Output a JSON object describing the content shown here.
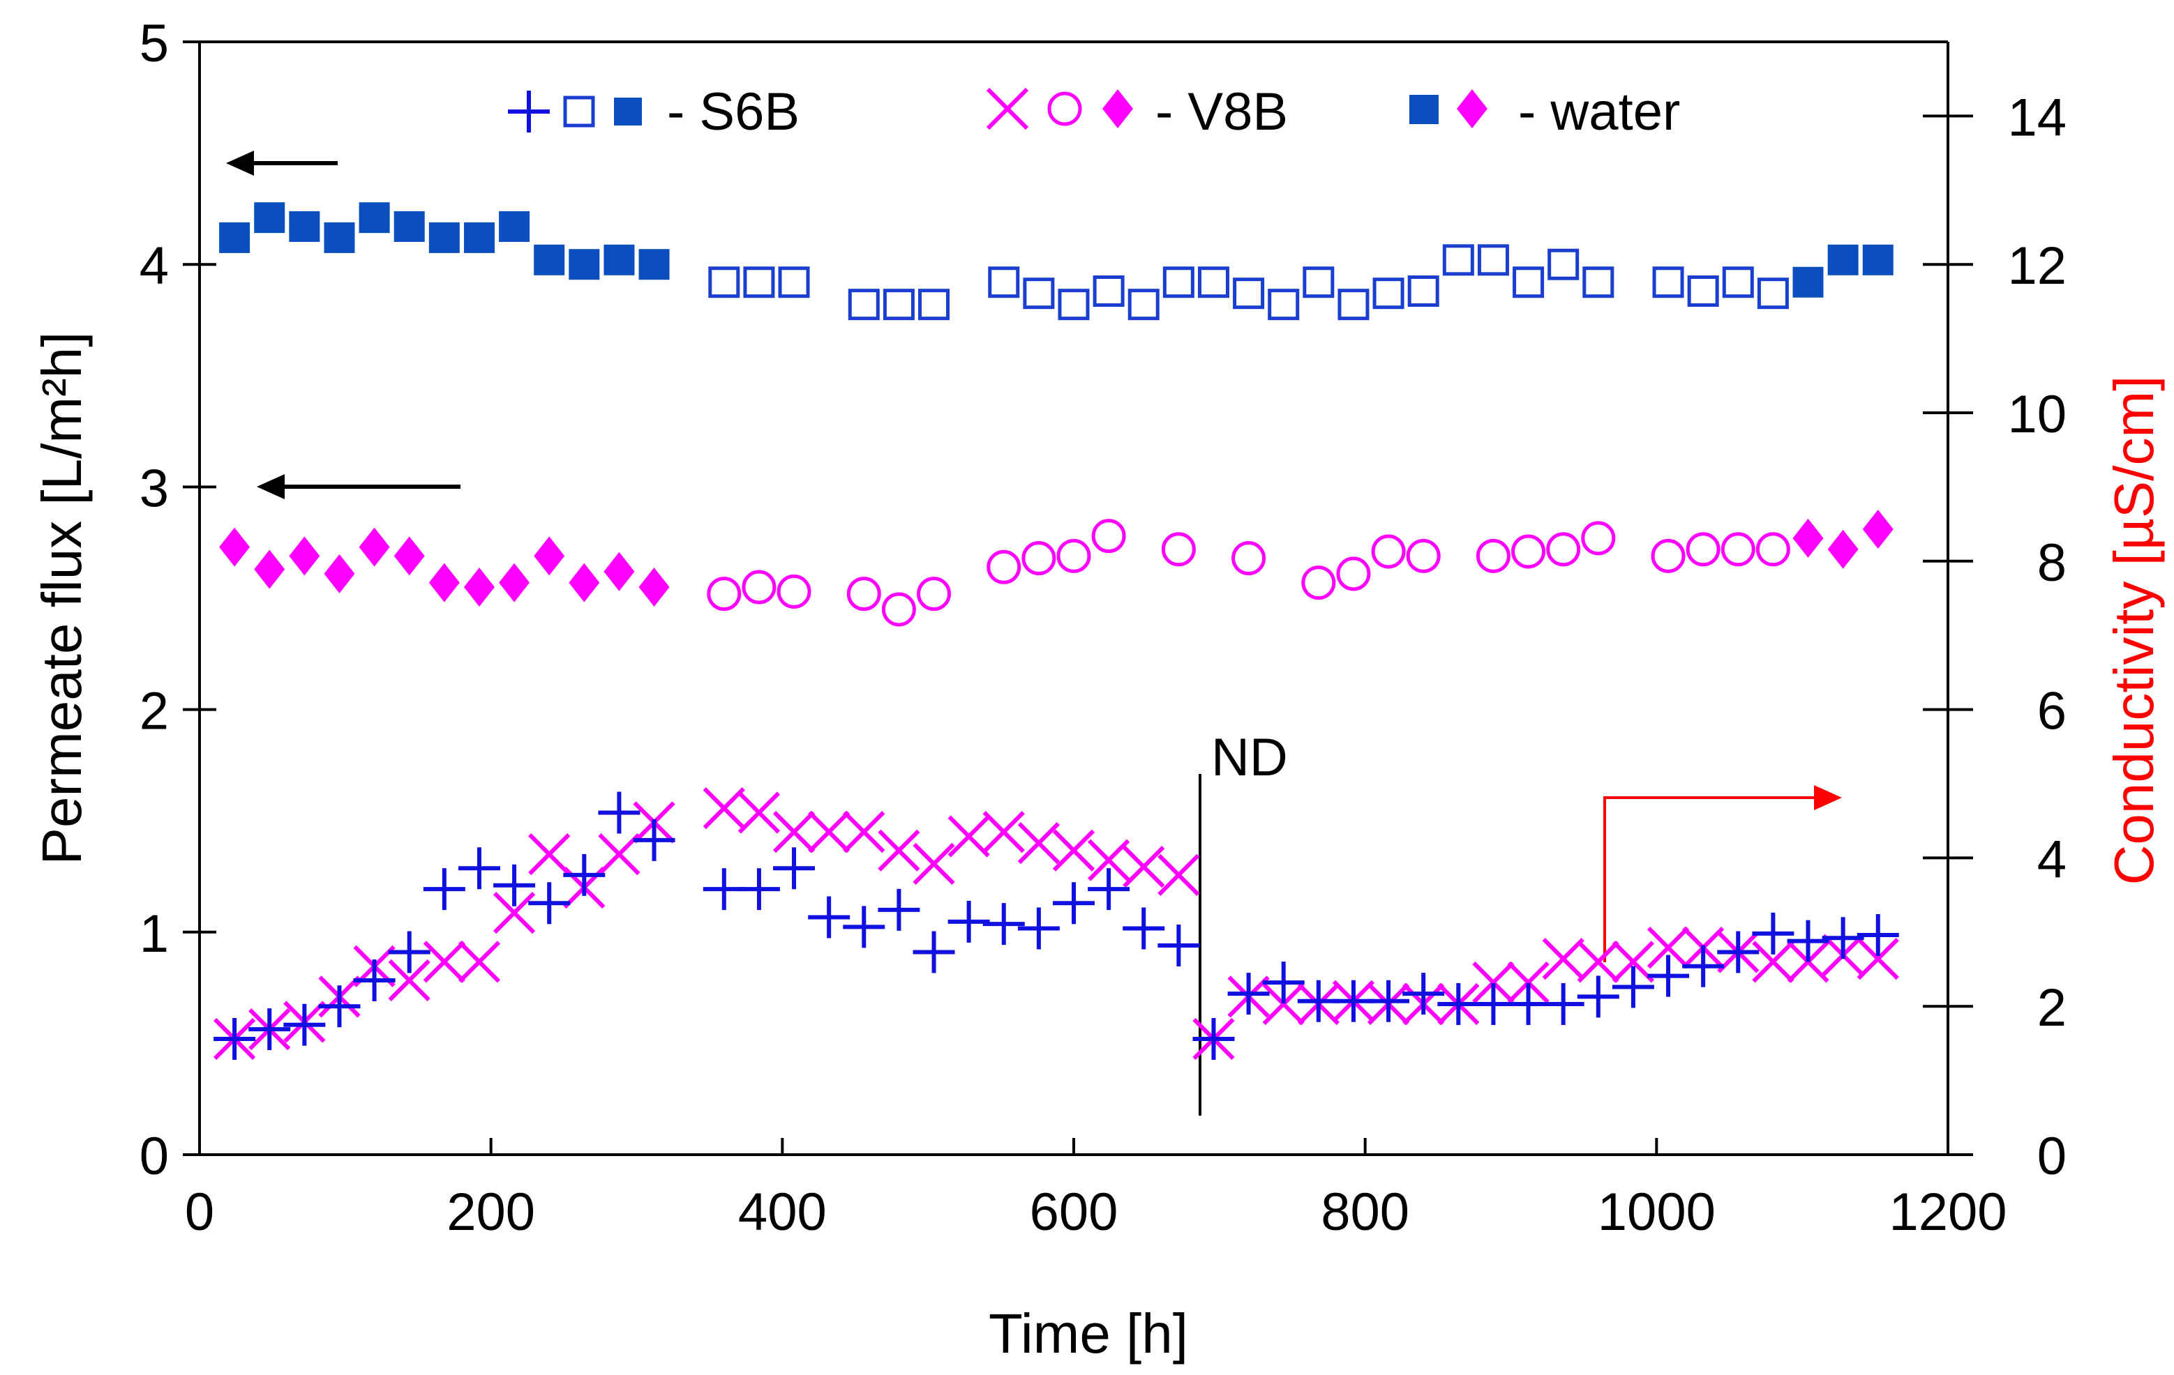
{
  "chart_data": {
    "type": "scatter",
    "xlabel": "Time [h]",
    "ylabel": "Permeate flux [L/m²h]",
    "y2label": "Conductivity [µS/cm]",
    "xlim": [
      0,
      1200
    ],
    "ylim": [
      0,
      5
    ],
    "y2lim": [
      0,
      15
    ],
    "xticks": [
      "0",
      "200",
      "400",
      "600",
      "800",
      "1000",
      "1200"
    ],
    "yticks": [
      "0",
      "1",
      "2",
      "3",
      "4",
      "5"
    ],
    "y2ticks": [
      "0",
      "2",
      "4",
      "6",
      "8",
      "10",
      "12",
      "14"
    ],
    "grid": false,
    "legend": {
      "placement": "top",
      "entries": [
        "- S6B",
        "- V8B",
        "- water"
      ]
    },
    "annotations": {
      "nd": "ND",
      "nd_time": 687
    },
    "colors": {
      "s6b": "#1010e0",
      "v8b": "#ff00ff",
      "water_square": "#0a4ebf",
      "axis_right_label": "#ff0000",
      "arrow_right": "#ff0000",
      "arrow_left": "#000000"
    },
    "series": [
      {
        "group": "S6B",
        "kind": "flux",
        "marker": "filled-square",
        "color": "#0a4ebf",
        "axis": "left",
        "x": [
          24,
          48,
          72,
          96,
          120,
          144,
          168,
          192,
          216,
          240,
          264,
          288,
          312
        ],
        "y": [
          4.12,
          4.21,
          4.17,
          4.12,
          4.21,
          4.17,
          4.12,
          4.12,
          4.17,
          4.02,
          4.0,
          4.02,
          4.0
        ]
      },
      {
        "group": "S6B",
        "kind": "flux",
        "marker": "open-square",
        "color": "#1a3fd0",
        "axis": "left",
        "x": [
          360,
          384,
          408,
          456,
          480,
          504,
          552,
          576,
          600,
          624,
          648,
          672,
          696,
          720,
          744,
          768,
          792,
          816,
          840,
          864,
          888,
          912,
          936,
          960,
          1008,
          1032,
          1056,
          1080
        ],
        "y": [
          3.92,
          3.92,
          3.92,
          3.82,
          3.82,
          3.82,
          3.92,
          3.87,
          3.82,
          3.88,
          3.82,
          3.92,
          3.92,
          3.87,
          3.82,
          3.92,
          3.82,
          3.87,
          3.88,
          4.02,
          4.02,
          3.92,
          4.0,
          3.92,
          3.92,
          3.88,
          3.92,
          3.87
        ]
      },
      {
        "group": "water",
        "kind": "flux",
        "marker": "filled-square",
        "color": "#0a4ebf",
        "axis": "left",
        "x": [
          1104,
          1128,
          1152
        ],
        "y": [
          3.92,
          4.02,
          4.02
        ]
      },
      {
        "group": "V8B",
        "kind": "flux",
        "marker": "diamond",
        "color": "#ff00ff",
        "axis": "left",
        "x": [
          24,
          48,
          72,
          96,
          120,
          144,
          168,
          192,
          216,
          240,
          264,
          288,
          312
        ],
        "y": [
          2.73,
          2.63,
          2.69,
          2.61,
          2.73,
          2.69,
          2.57,
          2.55,
          2.57,
          2.69,
          2.57,
          2.62,
          2.55
        ]
      },
      {
        "group": "V8B",
        "kind": "flux",
        "marker": "circle",
        "color": "#ff00ff",
        "axis": "left",
        "x": [
          360,
          384,
          408,
          456,
          480,
          504,
          552,
          576,
          600,
          624,
          672,
          720,
          768,
          792,
          816,
          840,
          888,
          912,
          936,
          960,
          1008,
          1032,
          1056,
          1080
        ],
        "y": [
          2.52,
          2.55,
          2.53,
          2.52,
          2.45,
          2.52,
          2.64,
          2.68,
          2.69,
          2.78,
          2.72,
          2.68,
          2.57,
          2.61,
          2.71,
          2.69,
          2.69,
          2.71,
          2.72,
          2.77,
          2.69,
          2.72,
          2.72,
          2.72
        ]
      },
      {
        "group": "water",
        "kind": "flux",
        "marker": "diamond",
        "color": "#ff00ff",
        "axis": "left",
        "x": [
          1104,
          1128,
          1152
        ],
        "y": [
          2.77,
          2.72,
          2.81
        ]
      },
      {
        "group": "V8B",
        "kind": "conductivity",
        "marker": "cross",
        "color": "#ff00ff",
        "axis": "right",
        "x": [
          24,
          48,
          72,
          96,
          120,
          144,
          168,
          192,
          216,
          240,
          264,
          288,
          312,
          360,
          384,
          408,
          432,
          456,
          480,
          504,
          528,
          552,
          576,
          600,
          624,
          648,
          672,
          696,
          720,
          744,
          768,
          792,
          816,
          840,
          864,
          888,
          912,
          936,
          960,
          984,
          1008,
          1032,
          1056,
          1080,
          1104,
          1128,
          1152
        ],
        "y": [
          1.56,
          1.69,
          1.79,
          2.13,
          2.54,
          2.35,
          2.6,
          2.6,
          3.26,
          4.05,
          3.6,
          4.05,
          4.48,
          4.67,
          4.61,
          4.35,
          4.35,
          4.35,
          4.1,
          3.92,
          4.29,
          4.35,
          4.2,
          4.1,
          3.97,
          3.88,
          3.77,
          1.56,
          2.13,
          2.03,
          2.03,
          2.07,
          2.03,
          2.03,
          2.03,
          2.32,
          2.32,
          2.64,
          2.6,
          2.6,
          2.79,
          2.79,
          2.73,
          2.6,
          2.6,
          2.69,
          2.64
        ]
      },
      {
        "group": "S6B",
        "kind": "conductivity",
        "marker": "plus",
        "color": "#1010e0",
        "axis": "right",
        "x": [
          24,
          48,
          72,
          96,
          120,
          144,
          168,
          192,
          216,
          240,
          264,
          288,
          312,
          360,
          384,
          408,
          432,
          456,
          480,
          504,
          528,
          552,
          576,
          600,
          624,
          648,
          672,
          696,
          720,
          744,
          768,
          792,
          816,
          840,
          864,
          888,
          912,
          936,
          960,
          984,
          1008,
          1032,
          1056,
          1080,
          1104,
          1128,
          1152
        ],
        "y": [
          1.56,
          1.69,
          1.75,
          2.0,
          2.35,
          2.73,
          3.58,
          3.86,
          3.63,
          3.39,
          3.77,
          4.61,
          4.24,
          3.58,
          3.58,
          3.86,
          3.2,
          3.07,
          3.3,
          2.73,
          3.14,
          3.11,
          3.05,
          3.39,
          3.58,
          3.05,
          2.82,
          1.56,
          2.17,
          2.32,
          2.07,
          2.07,
          2.07,
          2.17,
          2.03,
          2.03,
          2.03,
          2.03,
          2.13,
          2.26,
          2.41,
          2.54,
          2.73,
          2.98,
          2.88,
          2.92,
          2.96
        ]
      }
    ]
  }
}
